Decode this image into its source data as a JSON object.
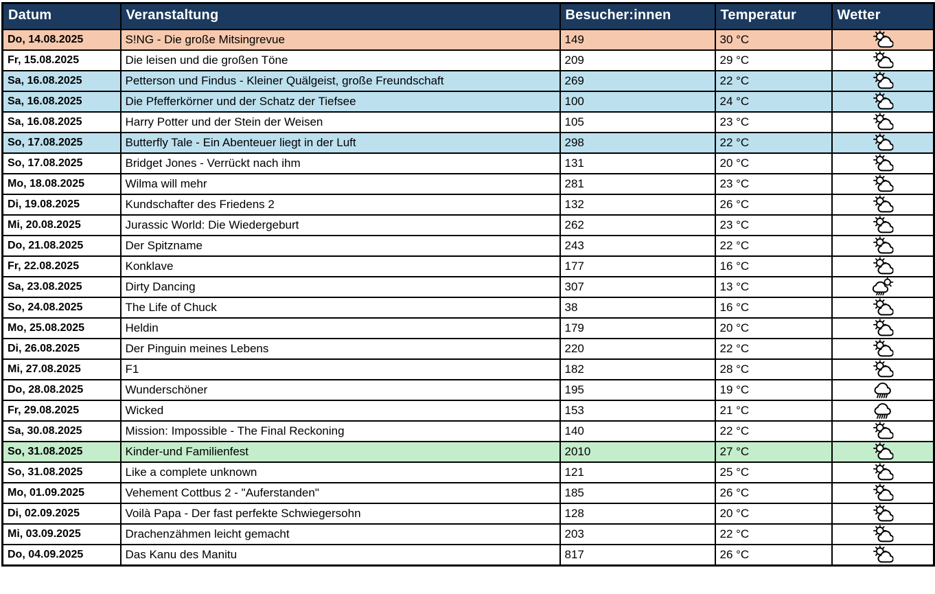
{
  "table": {
    "columns": [
      {
        "key": "date",
        "label": "Datum"
      },
      {
        "key": "event",
        "label": "Veranstaltung"
      },
      {
        "key": "visitors",
        "label": "Besucher:innen"
      },
      {
        "key": "temperature",
        "label": "Temperatur"
      },
      {
        "key": "weather",
        "label": "Wetter"
      }
    ],
    "colors": {
      "header_bg": "#1c3a5e",
      "header_text": "#ffffff",
      "border": "#000000",
      "highlight_salmon": "#f6c9ae",
      "highlight_blue": "#bde0ee",
      "highlight_green": "#c4edcb",
      "row_default": "#ffffff"
    },
    "weather_icon_names": [
      "sun-behind-cloud",
      "sun-behind-rain-cloud",
      "rain-cloud"
    ],
    "rows": [
      {
        "date": "Do, 14.08.2025",
        "event": "S!NG - Die große Mitsingrevue",
        "visitors": 149,
        "temperature": "30 °C",
        "weather": "sun-behind-cloud",
        "highlight": "salmon"
      },
      {
        "date": "Fr, 15.08.2025",
        "event": "Die leisen und die großen Töne",
        "visitors": 209,
        "temperature": "29 °C",
        "weather": "sun-behind-cloud",
        "highlight": "none"
      },
      {
        "date": "Sa, 16.08.2025",
        "event": "Petterson und Findus - Kleiner Quälgeist, große Freundschaft",
        "visitors": 269,
        "temperature": "22 °C",
        "weather": "sun-behind-cloud",
        "highlight": "blue"
      },
      {
        "date": "Sa, 16.08.2025",
        "event": "Die Pfefferkörner und der Schatz der Tiefsee",
        "visitors": 100,
        "temperature": "24 °C",
        "weather": "sun-behind-cloud",
        "highlight": "blue"
      },
      {
        "date": "Sa, 16.08.2025",
        "event": "Harry Potter und der Stein der Weisen",
        "visitors": 105,
        "temperature": "23 °C",
        "weather": "sun-behind-cloud",
        "highlight": "none"
      },
      {
        "date": "So, 17.08.2025",
        "event": "Butterfly Tale - Ein Abenteuer liegt in der Luft",
        "visitors": 298,
        "temperature": "22 °C",
        "weather": "sun-behind-cloud",
        "highlight": "blue"
      },
      {
        "date": "So, 17.08.2025",
        "event": "Bridget Jones - Verrückt nach ihm",
        "visitors": 131,
        "temperature": "20 °C",
        "weather": "sun-behind-cloud",
        "highlight": "none"
      },
      {
        "date": "Mo, 18.08.2025",
        "event": "Wilma will mehr",
        "visitors": 281,
        "temperature": "23 °C",
        "weather": "sun-behind-cloud",
        "highlight": "none"
      },
      {
        "date": "Di, 19.08.2025",
        "event": "Kundschafter des Friedens 2",
        "visitors": 132,
        "temperature": "26 °C",
        "weather": "sun-behind-cloud",
        "highlight": "none"
      },
      {
        "date": "Mi, 20.08.2025",
        "event": "Jurassic World: Die Wiedergeburt",
        "visitors": 262,
        "temperature": "23 °C",
        "weather": "sun-behind-cloud",
        "highlight": "none"
      },
      {
        "date": "Do, 21.08.2025",
        "event": "Der Spitzname",
        "visitors": 243,
        "temperature": "22 °C",
        "weather": "sun-behind-cloud",
        "highlight": "none"
      },
      {
        "date": "Fr, 22.08.2025",
        "event": "Konklave",
        "visitors": 177,
        "temperature": "16 °C",
        "weather": "sun-behind-cloud",
        "highlight": "none"
      },
      {
        "date": "Sa, 23.08.2025",
        "event": "Dirty Dancing",
        "visitors": 307,
        "temperature": "13 °C",
        "weather": "sun-behind-rain-cloud",
        "highlight": "none"
      },
      {
        "date": "So, 24.08.2025",
        "event": "The Life of Chuck",
        "visitors": 38,
        "temperature": "16 °C",
        "weather": "sun-behind-cloud",
        "highlight": "none"
      },
      {
        "date": "Mo, 25.08.2025",
        "event": "Heldin",
        "visitors": 179,
        "temperature": "20 °C",
        "weather": "sun-behind-cloud",
        "highlight": "none"
      },
      {
        "date": "Di, 26.08.2025",
        "event": "Der Pinguin meines Lebens",
        "visitors": 220,
        "temperature": "22 °C",
        "weather": "sun-behind-cloud",
        "highlight": "none"
      },
      {
        "date": "Mi, 27.08.2025",
        "event": "F1",
        "visitors": 182,
        "temperature": "28 °C",
        "weather": "sun-behind-cloud",
        "highlight": "none"
      },
      {
        "date": "Do, 28.08.2025",
        "event": "Wunderschöner",
        "visitors": 195,
        "temperature": "19 °C",
        "weather": "rain-cloud",
        "highlight": "none"
      },
      {
        "date": "Fr, 29.08.2025",
        "event": "Wicked",
        "visitors": 153,
        "temperature": "21 °C",
        "weather": "rain-cloud",
        "highlight": "none"
      },
      {
        "date": "Sa, 30.08.2025",
        "event": "Mission: Impossible - The Final Reckoning",
        "visitors": 140,
        "temperature": "22 °C",
        "weather": "sun-behind-cloud",
        "highlight": "none"
      },
      {
        "date": "So, 31.08.2025",
        "event": "Kinder-und Familienfest",
        "visitors": 2010,
        "temperature": "27 °C",
        "weather": "sun-behind-cloud",
        "highlight": "green"
      },
      {
        "date": "So, 31.08.2025",
        "event": "Like a complete unknown",
        "visitors": 121,
        "temperature": "25 °C",
        "weather": "sun-behind-cloud",
        "highlight": "none"
      },
      {
        "date": "Mo, 01.09.2025",
        "event": "Vehement Cottbus 2 - \"Auferstanden\"",
        "visitors": 185,
        "temperature": "26 °C",
        "weather": "sun-behind-cloud",
        "highlight": "none"
      },
      {
        "date": "Di, 02.09.2025",
        "event": "Voilà Papa - Der fast perfekte Schwiegersohn",
        "visitors": 128,
        "temperature": "20 °C",
        "weather": "sun-behind-cloud",
        "highlight": "none"
      },
      {
        "date": "Mi, 03.09.2025",
        "event": "Drachenzähmen leicht gemacht",
        "visitors": 203,
        "temperature": "22 °C",
        "weather": "sun-behind-cloud",
        "highlight": "none"
      },
      {
        "date": "Do, 04.09.2025",
        "event": "Das Kanu des Manitu",
        "visitors": 817,
        "temperature": "26 °C",
        "weather": "sun-behind-cloud",
        "highlight": "none"
      }
    ]
  }
}
